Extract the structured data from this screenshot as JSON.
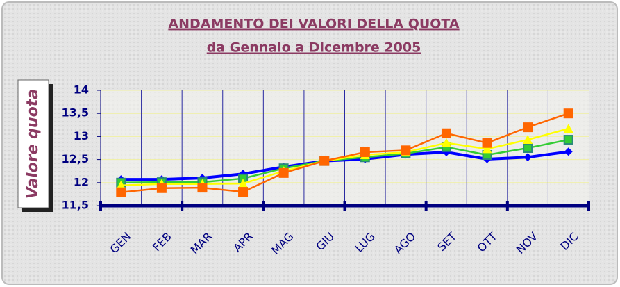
{
  "chart_data": {
    "type": "line",
    "title": "ANDAMENTO DEI VALORI DELLA QUOTA",
    "subtitle": "da Gennaio a Dicembre 2005",
    "y_label": "Valore quota",
    "categories": [
      "GEN",
      "FEB",
      "MAR",
      "APR",
      "MAG",
      "GIU",
      "LUG",
      "AGO",
      "SET",
      "OTT",
      "NOV",
      "DIC"
    ],
    "series": [
      {
        "color": "#0000ff",
        "marker": "diamond",
        "values": [
          12.07,
          12.07,
          12.1,
          12.19,
          12.34,
          12.47,
          12.51,
          12.61,
          12.66,
          12.51,
          12.55,
          12.67
        ]
      },
      {
        "color": "#33cc33",
        "marker": "square",
        "values": [
          12.0,
          12.01,
          12.01,
          12.09,
          12.31,
          12.47,
          12.55,
          12.63,
          12.77,
          12.6,
          12.75,
          12.93
        ]
      },
      {
        "color": "#ffff00",
        "marker": "triangle",
        "values": [
          11.94,
          11.97,
          11.97,
          11.98,
          12.25,
          12.47,
          12.6,
          12.66,
          12.86,
          12.73,
          12.93,
          13.17
        ]
      },
      {
        "color": "#ff6600",
        "marker": "square",
        "values": [
          11.79,
          11.88,
          11.89,
          11.8,
          12.21,
          12.47,
          12.66,
          12.7,
          13.07,
          12.86,
          13.2,
          13.5
        ]
      }
    ],
    "ylim": [
      11.5,
      14
    ],
    "yticks": [
      {
        "value": 11.5,
        "label": "11,5"
      },
      12,
      {
        "value": 12.5,
        "label": "12,5"
      },
      13,
      {
        "value": 13.5,
        "label": "13,5"
      },
      14
    ],
    "grid": true
  }
}
